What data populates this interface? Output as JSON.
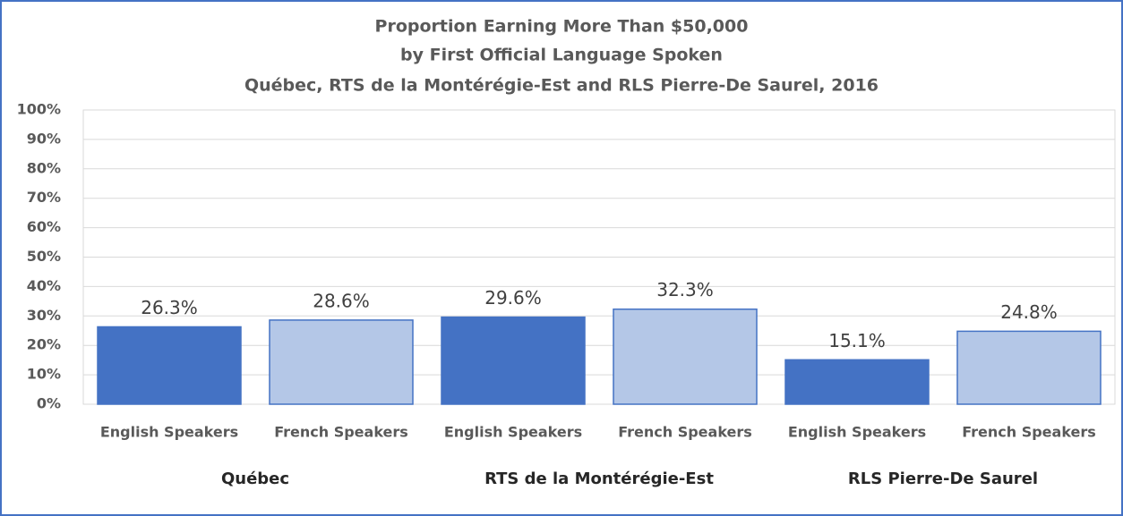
{
  "chart_data": {
    "type": "bar",
    "title": "Proportion Earning More Than $50,000",
    "subtitle": [
      "by First Official Language Spoken",
      "Québec, RTS de la Montérégie-Est and RLS Pierre-De Saurel, 2016"
    ],
    "categories": [
      "English Speakers",
      "French Speakers",
      "English Speakers",
      "French Speakers",
      "English Speakers",
      "French Speakers"
    ],
    "groups": [
      "Québec",
      "RTS de la Montérégie-Est",
      "RLS Pierre-De Saurel"
    ],
    "values": [
      26.3,
      28.6,
      29.6,
      32.3,
      15.1,
      24.8
    ],
    "value_labels": [
      "26.3%",
      "28.6%",
      "29.6%",
      "32.3%",
      "15.1%",
      "24.8%"
    ],
    "colors": [
      "#4472c4",
      "#b4c7e7",
      "#4472c4",
      "#b4c7e7",
      "#4472c4",
      "#b4c7e7"
    ],
    "ylim": [
      0,
      100
    ],
    "yticks": [
      {
        "value": 0,
        "label": "0%"
      },
      {
        "value": 10,
        "label": "10%"
      },
      {
        "value": 20,
        "label": "20%"
      },
      {
        "value": 30,
        "label": "30%"
      },
      {
        "value": 40,
        "label": "40%"
      },
      {
        "value": 50,
        "label": "50%"
      },
      {
        "value": 60,
        "label": "60%"
      },
      {
        "value": 70,
        "label": "70%"
      },
      {
        "value": 80,
        "label": "80%"
      },
      {
        "value": 90,
        "label": "90%"
      },
      {
        "value": 100,
        "label": "100%"
      }
    ],
    "grid": true
  }
}
